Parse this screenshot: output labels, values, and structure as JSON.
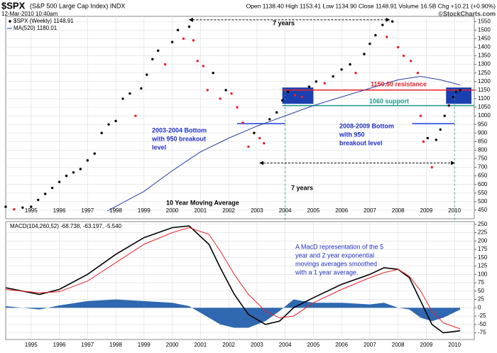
{
  "header": {
    "symbol": "$SPX",
    "name": "(S&P 500 Large Cap Index) INDX",
    "date": "12-Mar-2010 10:40am",
    "quote": "Open 1138.40  High 1153.41  Low 1134.90  Close 1148.91  Volume 16.5B  Chg +10.21 (+0.90%)",
    "brand": "©StockCharts.com"
  },
  "chart_data": [
    {
      "type": "scatter",
      "legend": [
        "$SPX (Weekly) 1148.91",
        "MA(520) 1180.01"
      ],
      "xlim": [
        1994.1,
        2010.7
      ],
      "xticks": [
        1995,
        1996,
        1997,
        1998,
        1999,
        2000,
        2001,
        2002,
        2003,
        2004,
        2005,
        2006,
        2007,
        2008,
        2009,
        2010
      ],
      "ylim": [
        400,
        1580
      ],
      "yticks": [
        450,
        500,
        550,
        600,
        650,
        700,
        750,
        800,
        850,
        900,
        950,
        1000,
        1050,
        1100,
        1150,
        1200,
        1250,
        1300,
        1350,
        1400,
        1450,
        1500,
        1550
      ],
      "grid": true,
      "up_color": "#000000",
      "down_color": "#e8202a",
      "x": [
        1994.1,
        1994.4,
        1994.7,
        1995.0,
        1995.25,
        1995.5,
        1995.75,
        1996.0,
        1996.25,
        1996.5,
        1996.75,
        1997.0,
        1997.25,
        1997.5,
        1997.75,
        1998.0,
        1998.25,
        1998.5,
        1998.7,
        1998.9,
        1999.1,
        1999.3,
        1999.5,
        1999.75,
        2000.0,
        2000.2,
        2000.4,
        2000.6,
        2000.75,
        2000.9,
        2001.1,
        2001.25,
        2001.45,
        2001.7,
        2001.9,
        2002.1,
        2002.3,
        2002.5,
        2002.7,
        2002.9,
        2003.1,
        2003.25,
        2003.45,
        2003.7,
        2003.9,
        2004.1,
        2004.35,
        2004.6,
        2004.85,
        2005.1,
        2005.4,
        2005.7,
        2006.0,
        2006.3,
        2006.5,
        2006.8,
        2007.0,
        2007.2,
        2007.45,
        2007.6,
        2007.8,
        2008.0,
        2008.2,
        2008.45,
        2008.7,
        2008.8,
        2008.9,
        2009.05,
        2009.2,
        2009.35,
        2009.5,
        2009.65,
        2009.8,
        2009.95,
        2010.05,
        2010.2
      ],
      "values": [
        470,
        455,
        465,
        470,
        510,
        545,
        580,
        615,
        650,
        670,
        690,
        740,
        780,
        900,
        950,
        970,
        1100,
        1130,
        1000,
        1160,
        1240,
        1330,
        1380,
        1300,
        1430,
        1500,
        1450,
        1520,
        1440,
        1320,
        1290,
        1150,
        1250,
        1100,
        1150,
        1130,
        1050,
        960,
        820,
        900,
        870,
        840,
        980,
        1020,
        1090,
        1140,
        1120,
        1110,
        1170,
        1200,
        1190,
        1230,
        1270,
        1300,
        1250,
        1360,
        1420,
        1470,
        1530,
        1460,
        1550,
        1400,
        1350,
        1320,
        1250,
        1000,
        850,
        870,
        700,
        860,
        920,
        1000,
        1060,
        1110,
        1140,
        1148.91
      ],
      "moving_average": {
        "name": "MA(520)",
        "color": "#2a3fa8",
        "x": [
          1997.7,
          1999.0,
          2000.0,
          2001.0,
          2002.0,
          2003.0,
          2004.0,
          2005.0,
          2006.0,
          2007.0,
          2008.0,
          2008.8,
          2009.5,
          2010.2
        ],
        "values": [
          445,
          560,
          680,
          790,
          870,
          940,
          1000,
          1060,
          1110,
          1160,
          1210,
          1230,
          1210,
          1180.01
        ]
      },
      "levels": [
        {
          "value": 1150.6,
          "color": "#e8202a",
          "x": [
            2003.9,
            2010.7
          ]
        },
        {
          "value": 1060,
          "color": "#1a9a8a",
          "x": [
            2003.9,
            2010.7
          ]
        },
        {
          "value": 955,
          "color": "#2040e0",
          "x": [
            2002.3,
            2004.0
          ]
        },
        {
          "value": 955,
          "color": "#2040e0",
          "x": [
            2008.5,
            2010.0
          ]
        }
      ],
      "highlight_boxes": [
        {
          "x": [
            2003.9,
            2005.0
          ],
          "y": [
            1070,
            1165
          ]
        },
        {
          "x": [
            2009.7,
            2010.6
          ],
          "y": [
            1070,
            1165
          ]
        }
      ],
      "spans": [
        {
          "x": [
            2000.6,
            2007.7
          ],
          "y": 1560
        },
        {
          "x": [
            2003.1,
            2010.0
          ],
          "y": 725
        }
      ],
      "event_lines": [
        2004.0,
        2010.0
      ],
      "annotations": [
        {
          "lines": [
            "7 years"
          ],
          "color": "#000000"
        },
        {
          "lines": [
            "1150.60 resistance"
          ],
          "color": "#e8202a"
        },
        {
          "lines": [
            "1060 support"
          ],
          "color": "#1a9a8a"
        },
        {
          "lines": [
            "2003-2004 Bottom",
            "with 950 breakout",
            "level"
          ],
          "color": "#2030c0"
        },
        {
          "lines": [
            "2008-2009 Bottom",
            "with 950",
            "breakout level"
          ],
          "color": "#2030c0"
        },
        {
          "lines": [
            "7 years"
          ],
          "color": "#000000"
        },
        {
          "lines": [
            "10 Year Moving Average"
          ],
          "color": "#000000"
        }
      ]
    },
    {
      "type": "line",
      "legend": "MACD(104,260,52) -68.738, -63.197, -5.540",
      "xlim": [
        1994.1,
        2010.7
      ],
      "xticks": [
        1995,
        1996,
        1997,
        1998,
        1999,
        2000,
        2001,
        2002,
        2003,
        2004,
        2005,
        2006,
        2007,
        2008,
        2009,
        2010
      ],
      "ylim": [
        -95,
        258
      ],
      "yticks": [
        -75,
        -50,
        -25,
        0,
        25,
        50,
        75,
        100,
        125,
        150,
        175,
        200,
        225,
        250
      ],
      "grid": true,
      "x": [
        1994.1,
        1995.3,
        1996,
        1997,
        1998,
        1999,
        2000,
        2000.6,
        2001.3,
        2001.7,
        2002.2,
        2002.7,
        2003.3,
        2003.8,
        2004.3,
        2005,
        2006,
        2007,
        2007.5,
        2008,
        2008.4,
        2008.8,
        2009.2,
        2009.6,
        2010.2
      ],
      "series": [
        {
          "name": "MACD",
          "color": "#000000",
          "values": [
            60,
            40,
            55,
            100,
            160,
            210,
            240,
            245,
            190,
            120,
            40,
            -20,
            -50,
            -40,
            0,
            30,
            70,
            100,
            120,
            115,
            90,
            20,
            -50,
            -75,
            -68.738
          ]
        },
        {
          "name": "Signal",
          "color": "#e8202a",
          "values": [
            55,
            45,
            48,
            80,
            135,
            190,
            225,
            240,
            220,
            170,
            100,
            40,
            -10,
            -30,
            -25,
            15,
            55,
            90,
            105,
            115,
            95,
            50,
            -10,
            -45,
            -63.197
          ]
        },
        {
          "name": "Histogram",
          "color": "#2f68b0",
          "style": "area",
          "values": [
            5,
            -5,
            7,
            20,
            25,
            20,
            15,
            5,
            -30,
            -50,
            -60,
            -60,
            -40,
            -10,
            25,
            15,
            15,
            10,
            15,
            0,
            -5,
            -30,
            -40,
            -30,
            -5.54
          ]
        }
      ],
      "annotations": [
        {
          "lines": [
            "A MacD representation of the 5",
            "year and 2 year exponential",
            "movings averages smoothed",
            "with a 1 year average."
          ],
          "color": "#2030c0"
        }
      ]
    }
  ]
}
